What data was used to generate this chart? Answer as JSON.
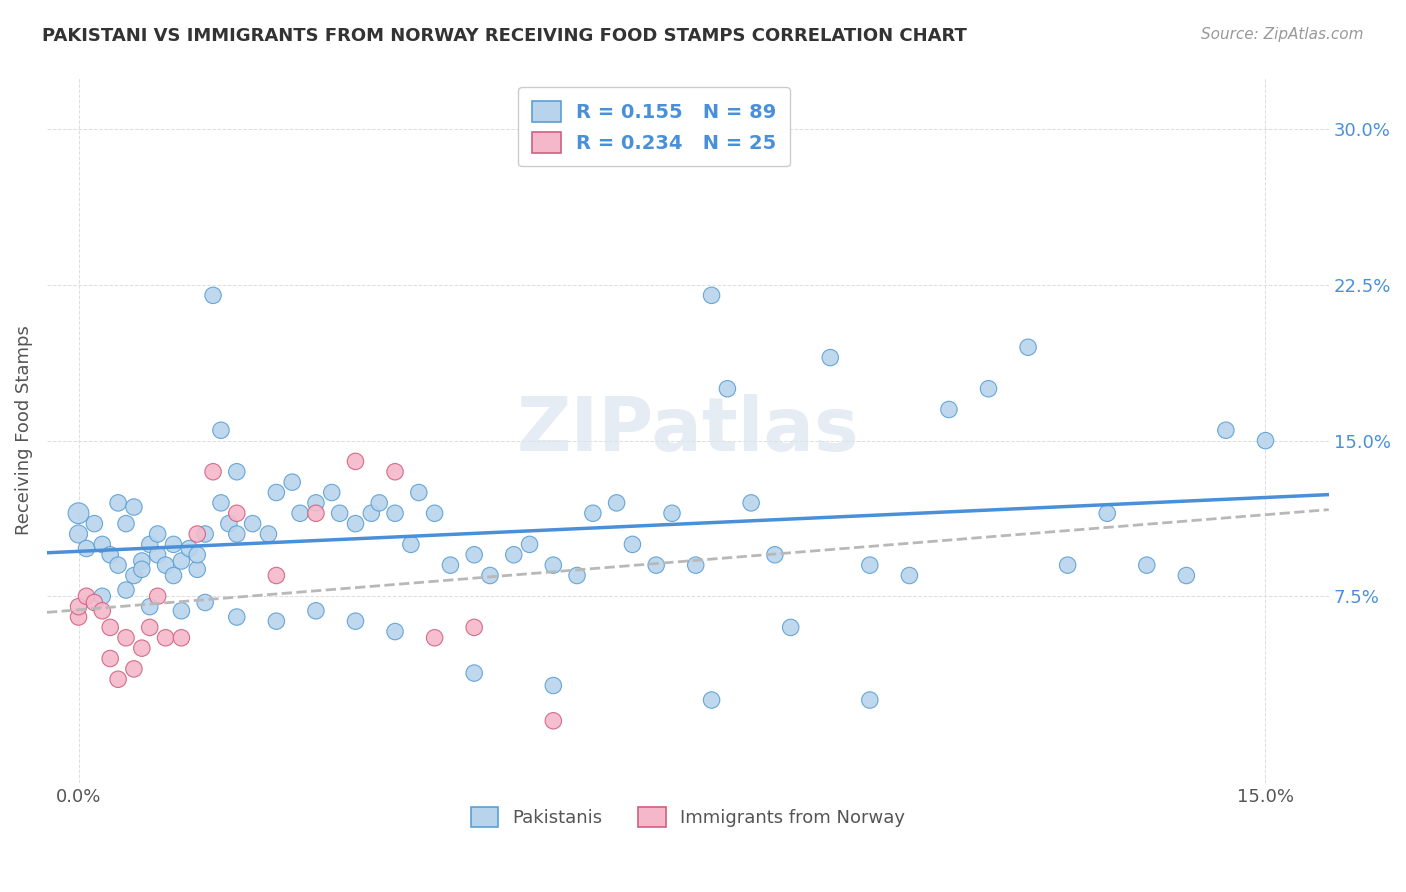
{
  "title": "PAKISTANI VS IMMIGRANTS FROM NORWAY RECEIVING FOOD STAMPS CORRELATION CHART",
  "source": "Source: ZipAtlas.com",
  "ylabel": "Receiving Food Stamps",
  "ytick_vals": [
    0.075,
    0.15,
    0.225,
    0.3
  ],
  "ytick_labels": [
    "7.5%",
    "15.0%",
    "22.5%",
    "30.0%"
  ],
  "xtick_vals": [
    0.0,
    0.15
  ],
  "xtick_labels": [
    "0.0%",
    "15.0%"
  ],
  "xlim": [
    -0.004,
    0.158
  ],
  "ylim": [
    -0.015,
    0.325
  ],
  "legend1_r": "0.155",
  "legend1_n": "89",
  "legend2_r": "0.234",
  "legend2_n": "25",
  "color_pakistani_fill": "#b8d4ec",
  "color_pakistani_edge": "#5a9fd4",
  "color_norway_fill": "#f5b8cb",
  "color_norway_edge": "#d06080",
  "color_line_pakistani": "#4a90d9",
  "color_line_norway": "#b8b8b8",
  "color_title": "#333333",
  "color_source": "#999999",
  "color_ytick": "#4a90d9",
  "color_xtick": "#555555",
  "color_ylabel": "#555555",
  "color_grid": "#dddddd",
  "color_watermark": "#dce4f0",
  "pakistani_x": [
    0.0,
    0.0,
    0.001,
    0.002,
    0.003,
    0.004,
    0.005,
    0.005,
    0.006,
    0.007,
    0.007,
    0.008,
    0.008,
    0.009,
    0.01,
    0.01,
    0.011,
    0.012,
    0.012,
    0.013,
    0.014,
    0.015,
    0.015,
    0.016,
    0.017,
    0.018,
    0.018,
    0.019,
    0.02,
    0.02,
    0.022,
    0.024,
    0.025,
    0.027,
    0.028,
    0.03,
    0.032,
    0.033,
    0.035,
    0.037,
    0.038,
    0.04,
    0.042,
    0.043,
    0.045,
    0.047,
    0.05,
    0.052,
    0.055,
    0.057,
    0.06,
    0.063,
    0.065,
    0.068,
    0.07,
    0.073,
    0.075,
    0.078,
    0.08,
    0.082,
    0.085,
    0.088,
    0.09,
    0.095,
    0.1,
    0.105,
    0.11,
    0.115,
    0.12,
    0.125,
    0.13,
    0.135,
    0.14,
    0.145,
    0.15,
    0.003,
    0.006,
    0.009,
    0.013,
    0.016,
    0.02,
    0.025,
    0.03,
    0.035,
    0.04,
    0.05,
    0.06,
    0.08,
    0.1
  ],
  "pakistani_y": [
    0.115,
    0.105,
    0.098,
    0.11,
    0.1,
    0.095,
    0.12,
    0.09,
    0.11,
    0.085,
    0.118,
    0.092,
    0.088,
    0.1,
    0.095,
    0.105,
    0.09,
    0.085,
    0.1,
    0.092,
    0.098,
    0.088,
    0.095,
    0.105,
    0.22,
    0.155,
    0.12,
    0.11,
    0.135,
    0.105,
    0.11,
    0.105,
    0.125,
    0.13,
    0.115,
    0.12,
    0.125,
    0.115,
    0.11,
    0.115,
    0.12,
    0.115,
    0.1,
    0.125,
    0.115,
    0.09,
    0.095,
    0.085,
    0.095,
    0.1,
    0.09,
    0.085,
    0.115,
    0.12,
    0.1,
    0.09,
    0.115,
    0.09,
    0.22,
    0.175,
    0.12,
    0.095,
    0.06,
    0.19,
    0.09,
    0.085,
    0.165,
    0.175,
    0.195,
    0.09,
    0.115,
    0.09,
    0.085,
    0.155,
    0.15,
    0.075,
    0.078,
    0.07,
    0.068,
    0.072,
    0.065,
    0.063,
    0.068,
    0.063,
    0.058,
    0.038,
    0.032,
    0.025,
    0.025
  ],
  "pakistan_sizes": [
    80,
    60,
    50,
    50,
    50,
    50,
    50,
    50,
    50,
    50,
    50,
    50,
    50,
    50,
    50,
    50,
    50,
    50,
    50,
    50,
    50,
    50,
    50,
    50,
    50,
    50,
    50,
    50,
    50,
    50,
    50,
    50,
    50,
    50,
    50,
    50,
    50,
    50,
    50,
    50,
    50,
    50,
    50,
    50,
    50,
    50,
    50,
    50,
    50,
    50,
    50,
    50,
    50,
    50,
    50,
    50,
    50,
    50,
    50,
    50,
    50,
    50,
    50,
    50,
    50,
    50,
    50,
    50,
    50,
    50,
    50,
    50,
    50,
    50,
    50,
    50,
    50,
    50,
    50,
    50,
    50,
    50,
    50,
    50,
    50,
    50,
    50,
    50,
    50
  ],
  "norway_x": [
    0.0,
    0.0,
    0.001,
    0.002,
    0.003,
    0.004,
    0.004,
    0.005,
    0.006,
    0.007,
    0.008,
    0.009,
    0.01,
    0.011,
    0.013,
    0.015,
    0.017,
    0.02,
    0.025,
    0.03,
    0.035,
    0.04,
    0.045,
    0.05,
    0.06
  ],
  "norway_y": [
    0.065,
    0.07,
    0.075,
    0.072,
    0.068,
    0.045,
    0.06,
    0.035,
    0.055,
    0.04,
    0.05,
    0.06,
    0.075,
    0.055,
    0.055,
    0.105,
    0.135,
    0.115,
    0.085,
    0.115,
    0.14,
    0.135,
    0.055,
    0.06,
    0.015
  ],
  "norway_sizes": [
    50,
    50,
    50,
    50,
    50,
    50,
    50,
    50,
    50,
    50,
    50,
    50,
    50,
    50,
    50,
    50,
    50,
    50,
    50,
    50,
    50,
    50,
    50,
    50,
    50
  ]
}
